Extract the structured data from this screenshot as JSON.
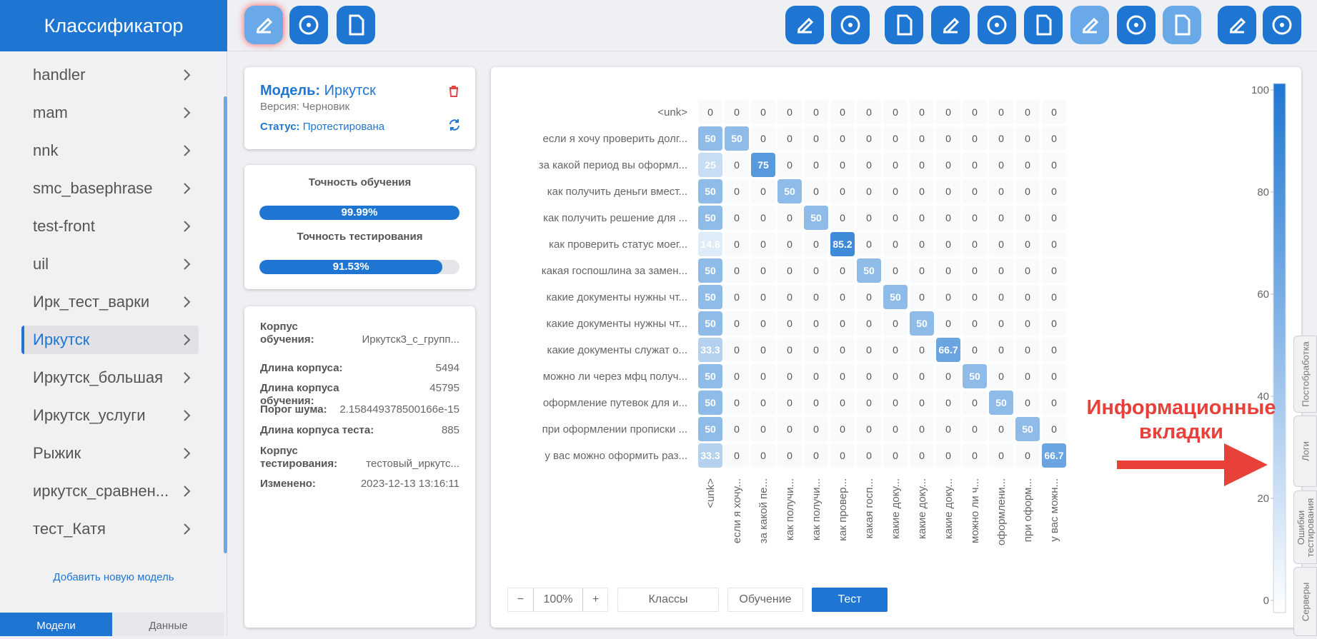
{
  "sidebar": {
    "title": "Классификатор",
    "items": [
      "handler",
      "mam",
      "nnk",
      "smc_basephrase",
      "test-front",
      "uil",
      "Ирк_тест_варки",
      "Иркутск",
      "Иркутск_большая",
      "Иркутск_услуги",
      "Рыжик",
      "иркутск_сравнен...",
      "тест_Катя"
    ],
    "selected_index": 7,
    "add_model": "Добавить новую модель",
    "tabs": [
      "Модели",
      "Данные"
    ],
    "selected_tab": 0
  },
  "model_card": {
    "model_label": "Модель:",
    "model_name": "Иркутск",
    "version": "Версия: Черновик",
    "status_label": "Статус:",
    "status": "Протестирована"
  },
  "accuracy": [
    {
      "label": "Точность обучения",
      "value": 99.99,
      "value_label": "99.99%"
    },
    {
      "label": "Точность тестирования",
      "value": 91.53,
      "value_label": "91.53%"
    }
  ],
  "info": [
    {
      "label": "Корпус обучения:",
      "value": "Иркутск3_с_групп..."
    },
    {
      "label": "Длина корпуса:",
      "value": 5494
    },
    {
      "label": "Длина корпуса обучения:",
      "value": 45795
    },
    {
      "label": "Порог шума:",
      "value": "2.158449378500166e-15"
    },
    {
      "label": "Длина корпуса теста:",
      "value": 885
    },
    {
      "label": "Корпус тестирования:",
      "value": "тестовый_иркутс..."
    },
    {
      "label": "Изменено:",
      "value": "2023-12-13 13:16:11"
    }
  ],
  "chart_data": {
    "type": "heatmap",
    "rows": [
      "<unk>",
      "если я хочу проверить долг...",
      "за какой период вы оформл...",
      "как получить деньги вмест...",
      "как получить решение для ...",
      "как проверить статус моег...",
      "какая госпошлина за замен...",
      "какие документы нужны чт...",
      "какие документы нужны чт...",
      "какие документы служат о...",
      "можно ли через мфц получ...",
      "оформление путевок для и...",
      "при оформлении прописки ...",
      "у вас можно оформить раз..."
    ],
    "columns": [
      "<unk>",
      "если я хочу...",
      "за какой пе...",
      "как получи...",
      "как получи...",
      "как провер...",
      "какая госп...",
      "какие доку...",
      "какие доку...",
      "какие доку...",
      "можно ли ч...",
      "оформлени...",
      "при оформ...",
      "у вас можн..."
    ],
    "values": [
      [
        0,
        0,
        0,
        0,
        0,
        0,
        0,
        0,
        0,
        0,
        0,
        0,
        0,
        0
      ],
      [
        50,
        50,
        0,
        0,
        0,
        0,
        0,
        0,
        0,
        0,
        0,
        0,
        0,
        0
      ],
      [
        25,
        0,
        75,
        0,
        0,
        0,
        0,
        0,
        0,
        0,
        0,
        0,
        0,
        0
      ],
      [
        50,
        0,
        0,
        50,
        0,
        0,
        0,
        0,
        0,
        0,
        0,
        0,
        0,
        0
      ],
      [
        50,
        0,
        0,
        0,
        50,
        0,
        0,
        0,
        0,
        0,
        0,
        0,
        0,
        0
      ],
      [
        14.8,
        0,
        0,
        0,
        0,
        85.2,
        0,
        0,
        0,
        0,
        0,
        0,
        0,
        0
      ],
      [
        50,
        0,
        0,
        0,
        0,
        0,
        50,
        0,
        0,
        0,
        0,
        0,
        0,
        0
      ],
      [
        50,
        0,
        0,
        0,
        0,
        0,
        0,
        50,
        0,
        0,
        0,
        0,
        0,
        0
      ],
      [
        50,
        0,
        0,
        0,
        0,
        0,
        0,
        0,
        50,
        0,
        0,
        0,
        0,
        0
      ],
      [
        33.3,
        0,
        0,
        0,
        0,
        0,
        0,
        0,
        0,
        66.7,
        0,
        0,
        0,
        0
      ],
      [
        50,
        0,
        0,
        0,
        0,
        0,
        0,
        0,
        0,
        0,
        50,
        0,
        0,
        0
      ],
      [
        50,
        0,
        0,
        0,
        0,
        0,
        0,
        0,
        0,
        0,
        0,
        50,
        0,
        0
      ],
      [
        50,
        0,
        0,
        0,
        0,
        0,
        0,
        0,
        0,
        0,
        0,
        0,
        50,
        0
      ],
      [
        33.3,
        0,
        0,
        0,
        0,
        0,
        0,
        0,
        0,
        0,
        0,
        0,
        0,
        66.7
      ]
    ],
    "colors": [
      "#ffffff",
      "#1f77d2"
    ],
    "clim": [
      0,
      100
    ],
    "cticks": [
      0,
      20,
      40,
      60,
      80,
      100
    ]
  },
  "controls": {
    "zoom_out": "−",
    "zoom": "100%",
    "zoom_in": "+",
    "buttons": [
      "Классы",
      "Обучение",
      "Тест"
    ],
    "selected_button": 2
  },
  "annotation": [
    "Информационные",
    "вкладки"
  ],
  "side_tabs": [
    "Постобработка",
    "Логи",
    "Ошибки тестирования",
    "Серверы"
  ]
}
